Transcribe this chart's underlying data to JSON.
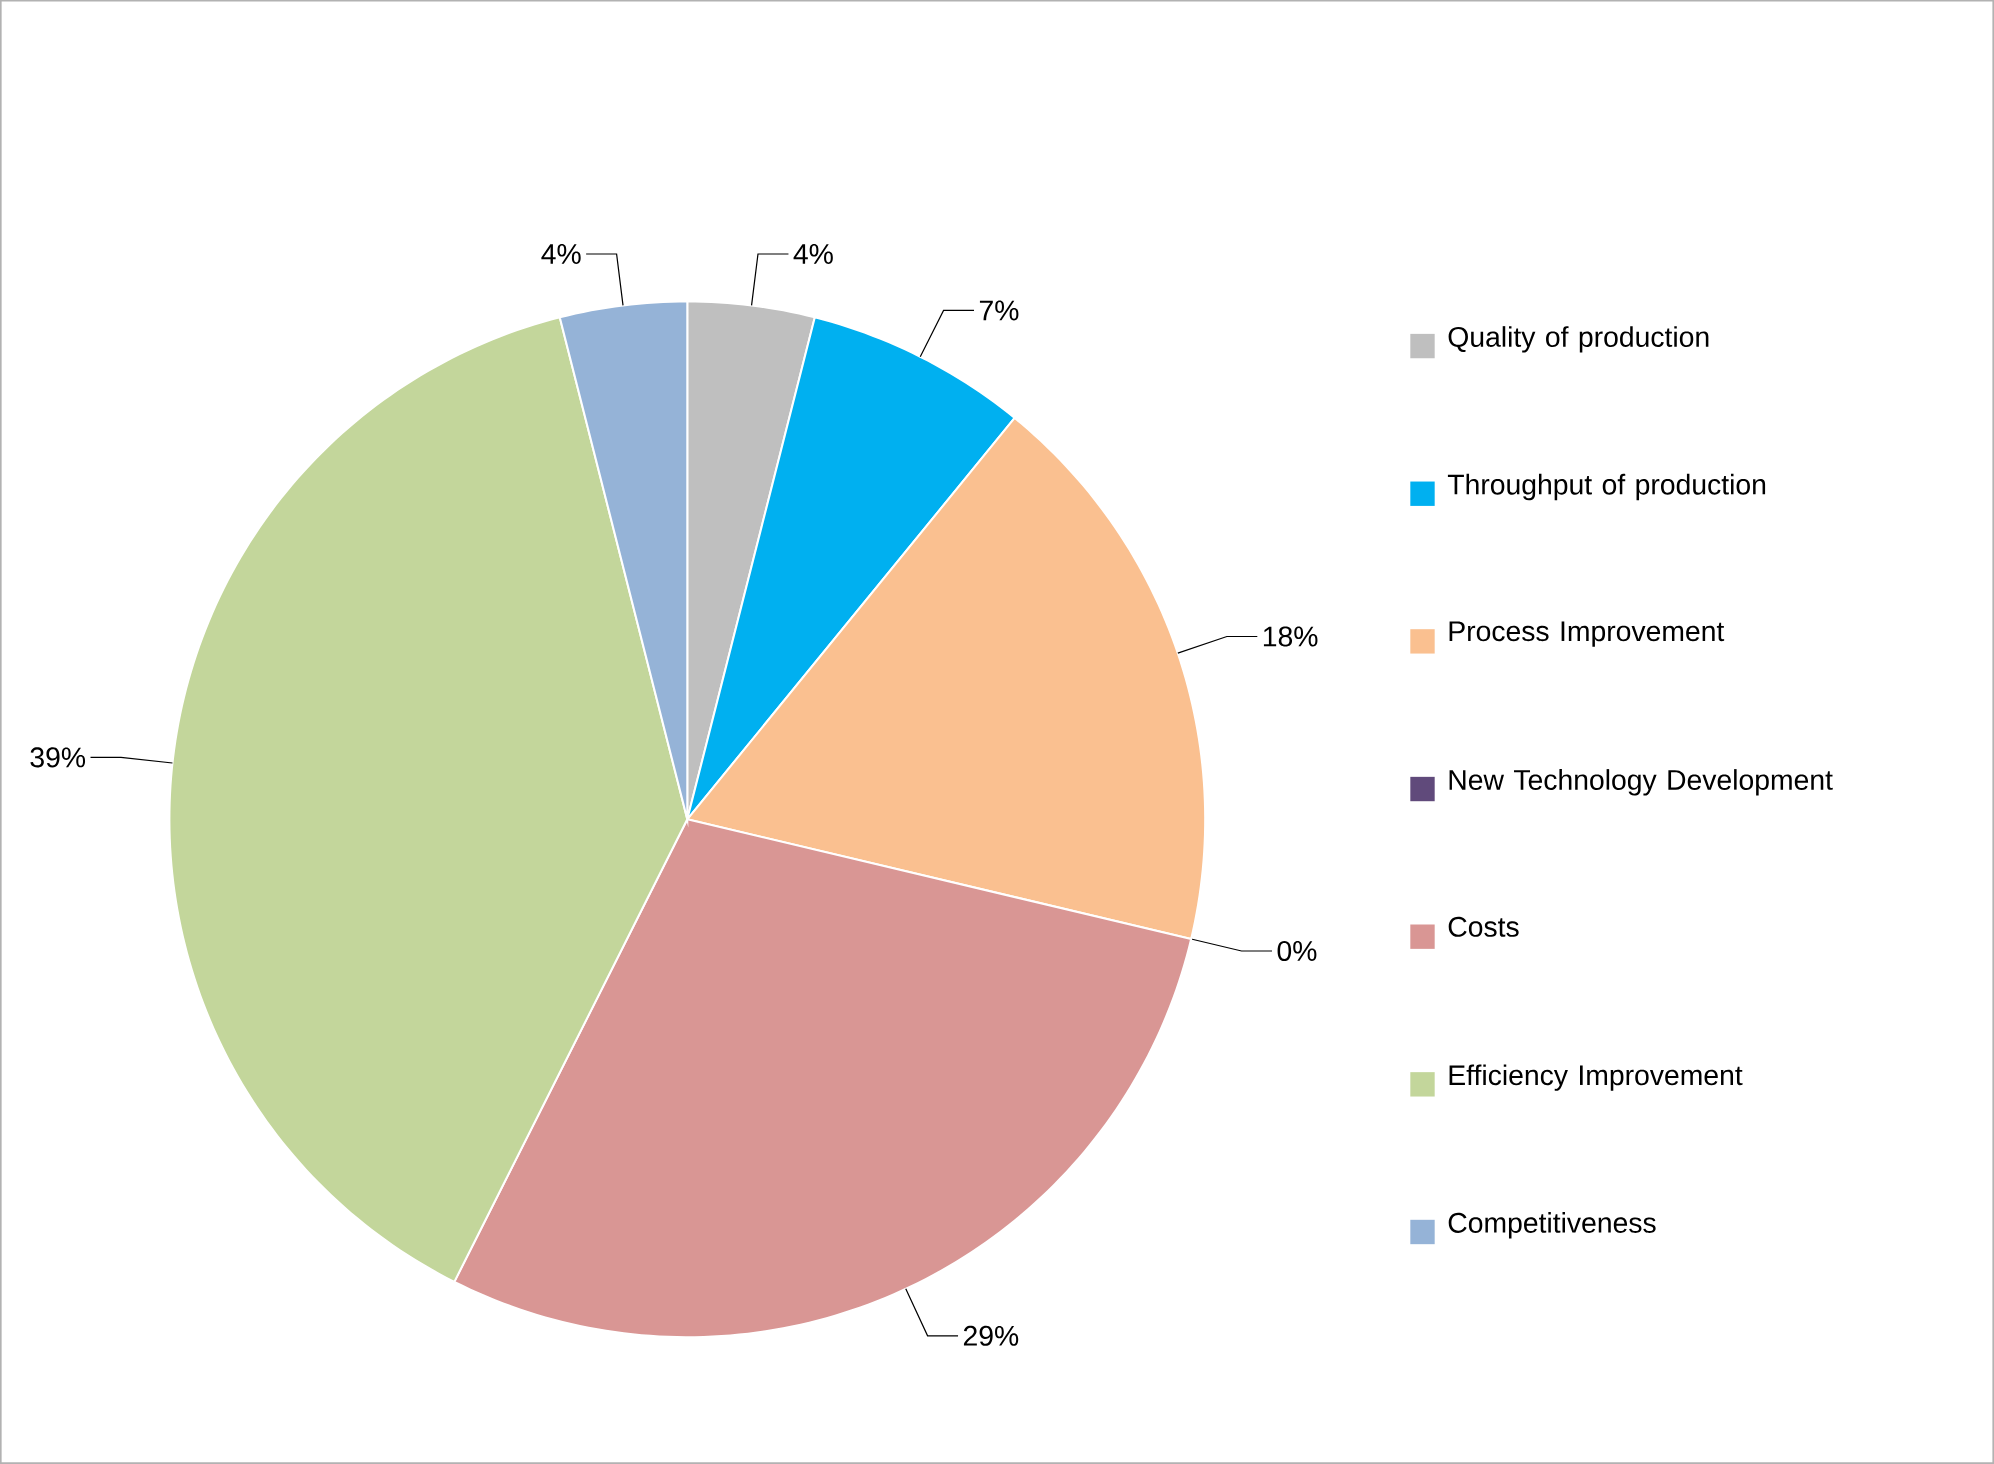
{
  "chart_data": {
    "type": "pie",
    "categories": [
      "Quality of production",
      "Throughput of production",
      "Process Improvement",
      "New Technology Development",
      "Costs",
      "Efficiency Improvement",
      "Competitiveness"
    ],
    "values": [
      4,
      7,
      18,
      0,
      29,
      39,
      4
    ],
    "value_labels": [
      "4%",
      "7%",
      "18%",
      "0%",
      "29%",
      "39%",
      "4%"
    ],
    "colors": [
      "#bfbfbf",
      "#00b0f0",
      "#fac090",
      "#604a7b",
      "#d99694",
      "#c3d69b",
      "#95b3d7"
    ],
    "legend": "right"
  }
}
